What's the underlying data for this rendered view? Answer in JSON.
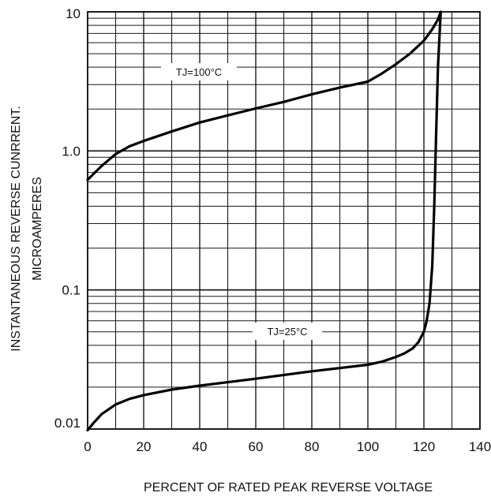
{
  "chart_data": {
    "type": "line",
    "title": "",
    "xlabel": "PERCENT OF RATED PEAK  REVERSE VOLTAGE",
    "ylabel_lines": [
      "INSTANTANEOUS REVERSE CUNRRENT.",
      "MICROAMPERES"
    ],
    "xlim": [
      0,
      140
    ],
    "ylim": [
      0.01,
      10
    ],
    "y_scale": "log",
    "grid": true,
    "x_ticks": [
      0,
      20,
      40,
      60,
      80,
      100,
      120,
      140
    ],
    "x_tick_labels": [
      "0",
      "20",
      "40",
      "60",
      "80",
      "100",
      "120",
      "140"
    ],
    "y_ticks": [
      0.01,
      0.1,
      1,
      10
    ],
    "y_tick_labels": [
      "0.01",
      "0.1",
      "1.0",
      "10"
    ],
    "series": [
      {
        "name": "TJ=100°C",
        "label": "TJ=100°C",
        "x": [
          0,
          5,
          10,
          15,
          20,
          30,
          40,
          50,
          60,
          70,
          80,
          90,
          100,
          105,
          110,
          115,
          120,
          123,
          125,
          126
        ],
        "y": [
          0.62,
          0.78,
          0.95,
          1.08,
          1.18,
          1.38,
          1.6,
          1.8,
          2.02,
          2.25,
          2.55,
          2.85,
          3.15,
          3.6,
          4.2,
          5.0,
          6.2,
          7.5,
          8.8,
          10
        ]
      },
      {
        "name": "TJ=25°C",
        "label": "TJ=25°C",
        "x": [
          0,
          2,
          5,
          10,
          15,
          20,
          30,
          40,
          60,
          80,
          100,
          105,
          110,
          113,
          116,
          118,
          120,
          121,
          122,
          123,
          123.7,
          124.3,
          125,
          126
        ],
        "y": [
          0.0098,
          0.011,
          0.0128,
          0.015,
          0.0165,
          0.0175,
          0.0192,
          0.0205,
          0.023,
          0.026,
          0.029,
          0.0305,
          0.033,
          0.035,
          0.038,
          0.042,
          0.05,
          0.06,
          0.08,
          0.15,
          0.4,
          1.2,
          4.0,
          10
        ]
      }
    ]
  }
}
